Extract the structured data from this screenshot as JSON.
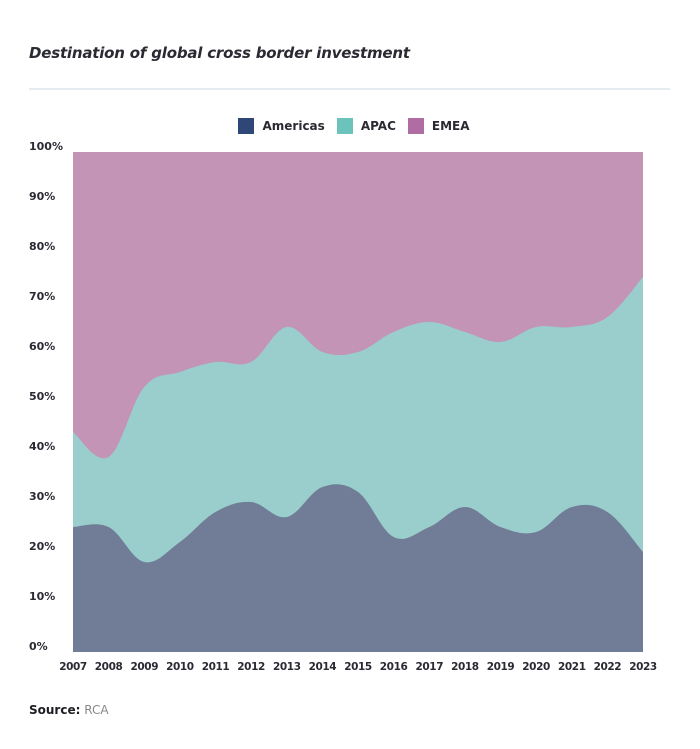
{
  "chart_data": {
    "type": "area",
    "stacked": true,
    "normalized": true,
    "title": "Destination of global cross border investment",
    "xlabel": "",
    "ylabel": "",
    "ylim": [
      0,
      100
    ],
    "y_ticks": [
      "0%",
      "10%",
      "20%",
      "30%",
      "40%",
      "50%",
      "60%",
      "70%",
      "80%",
      "90%",
      "100%"
    ],
    "categories": [
      "2007",
      "2008",
      "2009",
      "2010",
      "2011",
      "2012",
      "2013",
      "2014",
      "2015",
      "2016",
      "2017",
      "2018",
      "2019",
      "2020",
      "2021",
      "2022",
      "2023"
    ],
    "legend_position": "top-center",
    "series": [
      {
        "name": "Americas",
        "color": "#717d96",
        "legend_color": "#2f4777",
        "values": [
          25,
          25,
          18,
          22,
          28,
          30,
          27,
          33,
          32,
          23,
          25,
          29,
          25,
          24,
          29,
          28,
          20
        ]
      },
      {
        "name": "APAC",
        "color": "#99cecd",
        "legend_color": "#6cc3bb",
        "values": [
          19,
          14,
          35,
          34,
          30,
          28,
          38,
          27,
          28,
          41,
          41,
          35,
          37,
          41,
          36,
          39,
          55
        ]
      },
      {
        "name": "EMEA",
        "color": "#c394b5",
        "legend_color": "#b06da4",
        "values": [
          56,
          61,
          47,
          44,
          42,
          42,
          35,
          40,
          40,
          36,
          34,
          36,
          38,
          35,
          35,
          33,
          25
        ]
      }
    ]
  },
  "source": {
    "label": "Source:",
    "value": "RCA"
  }
}
